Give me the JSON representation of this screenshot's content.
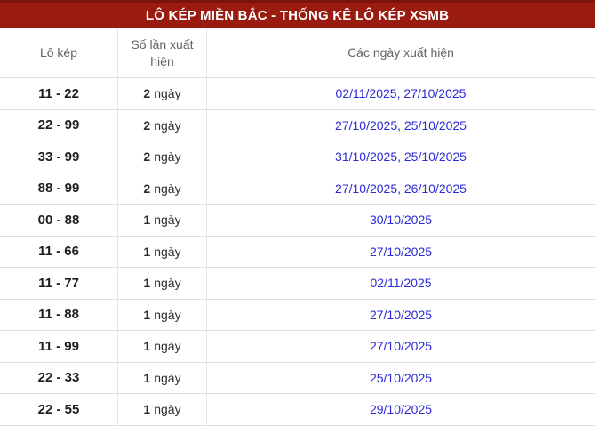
{
  "title_bar": {
    "title": "LÔ KÉP MIỀN BẮC - THỐNG KÊ LÔ KÉP XSMB"
  },
  "table": {
    "columns": [
      {
        "label": "Lô kép"
      },
      {
        "label": "Số lần xuất hiện"
      },
      {
        "label": "Các ngày xuất hiện"
      }
    ],
    "count_unit": "ngày",
    "date_separator": ", ",
    "rows": [
      {
        "pair": "11 - 22",
        "count": "2",
        "dates": [
          "02/11/2025",
          "27/10/2025"
        ]
      },
      {
        "pair": "22 - 99",
        "count": "2",
        "dates": [
          "27/10/2025",
          "25/10/2025"
        ]
      },
      {
        "pair": "33 - 99",
        "count": "2",
        "dates": [
          "31/10/2025",
          "25/10/2025"
        ]
      },
      {
        "pair": "88 - 99",
        "count": "2",
        "dates": [
          "27/10/2025",
          "26/10/2025"
        ]
      },
      {
        "pair": "00 - 88",
        "count": "1",
        "dates": [
          "30/10/2025"
        ]
      },
      {
        "pair": "11 - 66",
        "count": "1",
        "dates": [
          "27/10/2025"
        ]
      },
      {
        "pair": "11 - 77",
        "count": "1",
        "dates": [
          "02/11/2025"
        ]
      },
      {
        "pair": "11 - 88",
        "count": "1",
        "dates": [
          "27/10/2025"
        ]
      },
      {
        "pair": "11 - 99",
        "count": "1",
        "dates": [
          "27/10/2025"
        ]
      },
      {
        "pair": "22 - 33",
        "count": "1",
        "dates": [
          "25/10/2025"
        ]
      },
      {
        "pair": "22 - 55",
        "count": "1",
        "dates": [
          "29/10/2025"
        ]
      }
    ]
  },
  "colors": {
    "title_bg": "#9a1c11",
    "title_top_edge": "#7c140c",
    "title_text": "#ffffff",
    "column_header_text": "#5f6368",
    "pair_text": "#1f1f1f",
    "count_text": "#2e2e2e",
    "date_link": "#2a2ad6",
    "row_border": "#dedede",
    "column_border": "#e6e6e6"
  }
}
